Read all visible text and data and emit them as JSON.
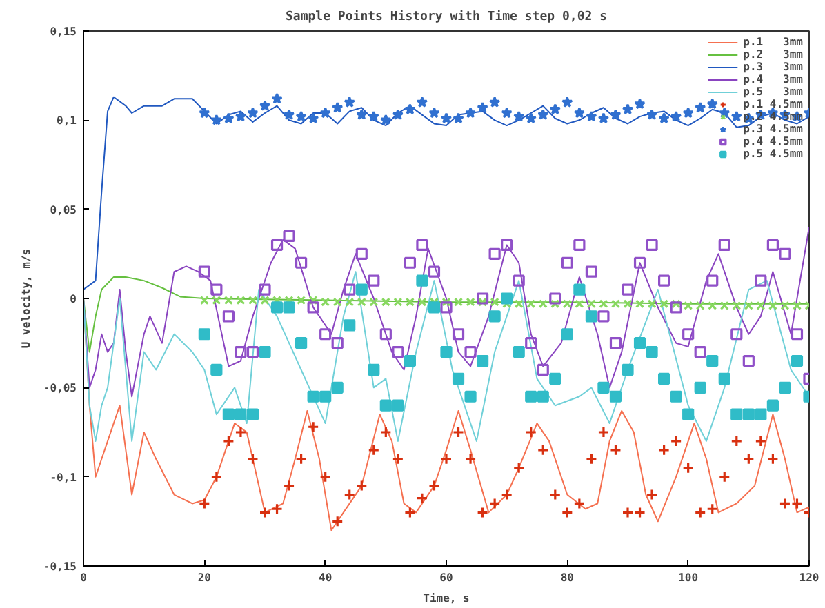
{
  "chart_data": {
    "type": "line",
    "title": "Sample Points History with Time step 0,02 s",
    "xlabel": "Time, s",
    "ylabel": "U velocity, m/s",
    "xlim": [
      0,
      120
    ],
    "xticks": [
      0,
      20,
      40,
      60,
      80,
      100,
      120
    ],
    "ylim": [
      -0.15,
      0.15
    ],
    "yticks": [
      {
        "value": -0.15,
        "label": "-0,15"
      },
      {
        "value": -0.1,
        "label": "-0,1"
      },
      {
        "value": -0.05,
        "label": "-0,05"
      },
      0,
      {
        "value": 0.05,
        "label": "0,05"
      },
      {
        "value": 0.1,
        "label": "0,1"
      },
      {
        "value": 0.15,
        "label": "0,15"
      }
    ],
    "grid": false,
    "legend": "top right",
    "series": [
      {
        "name": "p.1   3mm",
        "color": "#f57050",
        "x": [
          0,
          1,
          2,
          3,
          4,
          6,
          8,
          10,
          12,
          15,
          18,
          20,
          22,
          25,
          27,
          30,
          33,
          35,
          37,
          39,
          41,
          43,
          46,
          49,
          51,
          53,
          55,
          58,
          60,
          62,
          64,
          67,
          70,
          72,
          75,
          77,
          80,
          83,
          85,
          87,
          89,
          91,
          93,
          95,
          98,
          101,
          103,
          105,
          108,
          111,
          114,
          116,
          118,
          120
        ],
        "values": [
          0,
          -0.06,
          -0.1,
          -0.09,
          -0.08,
          -0.06,
          -0.11,
          -0.075,
          -0.09,
          -0.11,
          -0.115,
          -0.113,
          -0.1,
          -0.07,
          -0.075,
          -0.12,
          -0.115,
          -0.09,
          -0.063,
          -0.09,
          -0.13,
          -0.12,
          -0.105,
          -0.065,
          -0.08,
          -0.115,
          -0.12,
          -0.105,
          -0.085,
          -0.063,
          -0.085,
          -0.12,
          -0.11,
          -0.095,
          -0.07,
          -0.08,
          -0.11,
          -0.118,
          -0.115,
          -0.08,
          -0.063,
          -0.075,
          -0.11,
          -0.125,
          -0.1,
          -0.07,
          -0.09,
          -0.12,
          -0.115,
          -0.105,
          -0.065,
          -0.09,
          -0.12,
          -0.117
        ]
      },
      {
        "name": "p.2   3mm",
        "color": "#66c040",
        "x": [
          0,
          1,
          2,
          3,
          5,
          7,
          10,
          13,
          16,
          20,
          40,
          60,
          80,
          100,
          120
        ],
        "values": [
          0,
          -0.03,
          -0.01,
          0.005,
          0.012,
          0.012,
          0.01,
          0.006,
          0.001,
          0,
          -0.001,
          -0.002,
          -0.002,
          -0.003,
          -0.003
        ]
      },
      {
        "name": "p.3   3mm",
        "color": "#2058c0",
        "x": [
          0,
          2,
          3,
          4,
          5,
          7,
          8,
          10,
          13,
          15,
          18,
          20,
          22,
          24,
          26,
          28,
          30,
          32,
          34,
          36,
          38,
          40,
          42,
          44,
          46,
          48,
          50,
          52,
          54,
          56,
          58,
          60,
          62,
          64,
          66,
          68,
          70,
          72,
          74,
          76,
          78,
          80,
          82,
          84,
          86,
          88,
          90,
          92,
          94,
          96,
          98,
          100,
          102,
          104,
          106,
          108,
          110,
          112,
          114,
          116,
          118,
          120
        ],
        "values": [
          0.005,
          0.01,
          0.06,
          0.105,
          0.113,
          0.108,
          0.104,
          0.108,
          0.108,
          0.112,
          0.112,
          0.105,
          0.098,
          0.103,
          0.105,
          0.099,
          0.104,
          0.108,
          0.1,
          0.098,
          0.104,
          0.104,
          0.098,
          0.105,
          0.107,
          0.1,
          0.097,
          0.104,
          0.108,
          0.103,
          0.098,
          0.097,
          0.103,
          0.104,
          0.105,
          0.1,
          0.097,
          0.1,
          0.104,
          0.108,
          0.101,
          0.098,
          0.1,
          0.104,
          0.107,
          0.101,
          0.098,
          0.102,
          0.104,
          0.105,
          0.1,
          0.097,
          0.101,
          0.106,
          0.104,
          0.096,
          0.097,
          0.102,
          0.104,
          0.1,
          0.098,
          0.102
        ]
      },
      {
        "name": "p.4   3mm",
        "color": "#8a44c0",
        "x": [
          0,
          1,
          2,
          3,
          4,
          5,
          6,
          7,
          8,
          10,
          11,
          13,
          15,
          17,
          19,
          21,
          24,
          26,
          28,
          31,
          33,
          35,
          38,
          41,
          43,
          45,
          48,
          51,
          53,
          55,
          57,
          60,
          62,
          64,
          67,
          70,
          72,
          74,
          76,
          79,
          82,
          85,
          87,
          89,
          92,
          95,
          98,
          100,
          103,
          105,
          108,
          110,
          112,
          114,
          117,
          120
        ],
        "values": [
          0,
          -0.05,
          -0.04,
          -0.02,
          -0.03,
          -0.025,
          0.005,
          -0.03,
          -0.055,
          -0.02,
          -0.01,
          -0.025,
          0.015,
          0.018,
          0.015,
          0.01,
          -0.038,
          -0.035,
          -0.01,
          0.02,
          0.033,
          0.028,
          -0.005,
          -0.02,
          0.005,
          0.025,
          0.0,
          -0.03,
          -0.04,
          -0.01,
          0.028,
          0.0,
          -0.03,
          -0.038,
          -0.01,
          0.03,
          0.02,
          -0.02,
          -0.038,
          -0.025,
          0.012,
          -0.02,
          -0.05,
          -0.03,
          0.02,
          -0.005,
          -0.025,
          -0.027,
          0.01,
          0.025,
          -0.005,
          -0.02,
          -0.01,
          0.015,
          -0.02,
          0.04
        ]
      },
      {
        "name": "p.5   3mm",
        "color": "#70d0d8",
        "x": [
          0,
          1,
          2,
          3,
          4,
          6,
          8,
          10,
          12,
          15,
          18,
          20,
          22,
          25,
          27,
          29,
          32,
          36,
          40,
          43,
          45,
          48,
          50,
          52,
          55,
          58,
          61,
          65,
          68,
          72,
          75,
          78,
          82,
          84,
          87,
          90,
          95,
          100,
          103,
          106,
          110,
          113,
          117,
          120
        ],
        "values": [
          0,
          -0.06,
          -0.08,
          -0.06,
          -0.05,
          0.0,
          -0.08,
          -0.03,
          -0.04,
          -0.02,
          -0.03,
          -0.04,
          -0.065,
          -0.05,
          -0.07,
          0.005,
          -0.01,
          -0.04,
          -0.07,
          -0.01,
          0.015,
          -0.05,
          -0.045,
          -0.08,
          -0.03,
          0.01,
          -0.04,
          -0.08,
          -0.03,
          0.01,
          -0.045,
          -0.06,
          -0.055,
          -0.05,
          -0.07,
          -0.04,
          0.005,
          -0.06,
          -0.08,
          -0.05,
          0.005,
          0.01,
          -0.04,
          -0.055
        ]
      },
      {
        "name": "p.1 4.5mm",
        "type": "scatter",
        "marker": "cross",
        "color": "#d83010",
        "x": [
          20,
          22,
          24,
          26,
          28,
          30,
          32,
          34,
          36,
          38,
          40,
          42,
          44,
          46,
          48,
          50,
          52,
          54,
          56,
          58,
          60,
          62,
          64,
          66,
          68,
          70,
          72,
          74,
          76,
          78,
          80,
          82,
          84,
          86,
          88,
          90,
          92,
          94,
          96,
          98,
          100,
          102,
          104,
          106,
          108,
          110,
          112,
          114,
          116,
          118,
          120
        ],
        "values": [
          -0.115,
          -0.1,
          -0.08,
          -0.075,
          -0.09,
          -0.12,
          -0.118,
          -0.105,
          -0.09,
          -0.072,
          -0.1,
          -0.125,
          -0.11,
          -0.105,
          -0.085,
          -0.075,
          -0.09,
          -0.12,
          -0.112,
          -0.105,
          -0.09,
          -0.075,
          -0.09,
          -0.12,
          -0.115,
          -0.11,
          -0.095,
          -0.075,
          -0.085,
          -0.11,
          -0.12,
          -0.115,
          -0.09,
          -0.075,
          -0.085,
          -0.12,
          -0.12,
          -0.11,
          -0.085,
          -0.08,
          -0.095,
          -0.12,
          -0.118,
          -0.1,
          -0.08,
          -0.09,
          -0.08,
          -0.09,
          -0.115,
          -0.115,
          -0.12
        ]
      },
      {
        "name": "p.2 4.5mm",
        "type": "scatter",
        "marker": "x",
        "color": "#88d860",
        "x": [
          20,
          22,
          24,
          26,
          28,
          30,
          32,
          34,
          36,
          38,
          40,
          42,
          44,
          46,
          48,
          50,
          52,
          54,
          56,
          58,
          60,
          62,
          64,
          66,
          68,
          70,
          72,
          74,
          76,
          78,
          80,
          82,
          84,
          86,
          88,
          90,
          92,
          94,
          96,
          98,
          100,
          102,
          104,
          106,
          108,
          110,
          112,
          114,
          116,
          118,
          120
        ],
        "values": [
          -0.001,
          -0.001,
          -0.001,
          -0.001,
          -0.001,
          -0.001,
          -0.001,
          -0.001,
          -0.001,
          -0.001,
          -0.002,
          -0.002,
          -0.002,
          -0.002,
          -0.002,
          -0.002,
          -0.002,
          -0.002,
          -0.002,
          -0.002,
          -0.002,
          -0.002,
          -0.002,
          -0.002,
          -0.002,
          -0.003,
          -0.003,
          -0.003,
          -0.003,
          -0.003,
          -0.003,
          -0.003,
          -0.003,
          -0.003,
          -0.003,
          -0.003,
          -0.003,
          -0.003,
          -0.003,
          -0.003,
          -0.004,
          -0.004,
          -0.004,
          -0.004,
          -0.004,
          -0.004,
          -0.004,
          -0.004,
          -0.004,
          -0.004,
          -0.004
        ]
      },
      {
        "name": "p.3 4.5mm",
        "type": "scatter",
        "marker": "star",
        "color": "#3070d0",
        "x": [
          20,
          22,
          24,
          26,
          28,
          30,
          32,
          34,
          36,
          38,
          40,
          42,
          44,
          46,
          48,
          50,
          52,
          54,
          56,
          58,
          60,
          62,
          64,
          66,
          68,
          70,
          72,
          74,
          76,
          78,
          80,
          82,
          84,
          86,
          88,
          90,
          92,
          94,
          96,
          98,
          100,
          102,
          104,
          106,
          108,
          110,
          112,
          114,
          116,
          118,
          120
        ],
        "values": [
          0.104,
          0.1,
          0.101,
          0.102,
          0.104,
          0.108,
          0.112,
          0.103,
          0.102,
          0.101,
          0.104,
          0.107,
          0.11,
          0.103,
          0.102,
          0.1,
          0.103,
          0.106,
          0.11,
          0.104,
          0.101,
          0.101,
          0.104,
          0.107,
          0.11,
          0.104,
          0.102,
          0.101,
          0.103,
          0.106,
          0.11,
          0.104,
          0.102,
          0.101,
          0.103,
          0.106,
          0.109,
          0.103,
          0.101,
          0.102,
          0.104,
          0.107,
          0.109,
          0.104,
          0.102,
          0.101,
          0.103,
          0.104,
          0.103,
          0.102,
          0.104
        ]
      },
      {
        "name": "p.4 4.5mm",
        "type": "scatter",
        "marker": "square_open",
        "color": "#9050c8",
        "x": [
          20,
          22,
          24,
          26,
          28,
          30,
          32,
          34,
          36,
          38,
          40,
          42,
          44,
          46,
          48,
          50,
          52,
          54,
          56,
          58,
          60,
          62,
          64,
          66,
          68,
          70,
          72,
          74,
          76,
          78,
          80,
          82,
          84,
          86,
          88,
          90,
          92,
          94,
          96,
          98,
          100,
          102,
          104,
          106,
          108,
          110,
          112,
          114,
          116,
          118,
          120
        ],
        "values": [
          0.015,
          0.005,
          -0.01,
          -0.03,
          -0.03,
          0.005,
          0.03,
          0.035,
          0.02,
          -0.005,
          -0.02,
          -0.025,
          0.005,
          0.025,
          0.01,
          -0.02,
          -0.03,
          0.02,
          0.03,
          0.015,
          -0.005,
          -0.02,
          -0.03,
          0.0,
          0.025,
          0.03,
          0.01,
          -0.025,
          -0.04,
          0.0,
          0.02,
          0.03,
          0.015,
          -0.01,
          -0.025,
          0.005,
          0.02,
          0.03,
          0.01,
          -0.005,
          -0.02,
          -0.03,
          0.01,
          0.03,
          -0.02,
          -0.035,
          0.01,
          0.03,
          0.025,
          -0.02,
          -0.045
        ]
      },
      {
        "name": "p.5 4.5mm",
        "type": "scatter",
        "marker": "square",
        "color": "#30bcc8",
        "x": [
          20,
          22,
          24,
          26,
          28,
          30,
          32,
          34,
          36,
          38,
          40,
          42,
          44,
          46,
          48,
          50,
          52,
          54,
          56,
          58,
          60,
          62,
          64,
          66,
          68,
          70,
          72,
          74,
          76,
          78,
          80,
          82,
          84,
          86,
          88,
          90,
          92,
          94,
          96,
          98,
          100,
          102,
          104,
          106,
          108,
          110,
          112,
          114,
          116,
          118,
          120
        ],
        "values": [
          -0.02,
          -0.04,
          -0.065,
          -0.065,
          -0.065,
          -0.03,
          -0.005,
          -0.005,
          -0.025,
          -0.055,
          -0.055,
          -0.05,
          -0.015,
          0.005,
          -0.04,
          -0.06,
          -0.06,
          -0.035,
          0.01,
          -0.005,
          -0.03,
          -0.045,
          -0.055,
          -0.035,
          -0.01,
          0.0,
          -0.03,
          -0.055,
          -0.055,
          -0.045,
          -0.02,
          0.005,
          -0.01,
          -0.05,
          -0.055,
          -0.04,
          -0.025,
          -0.03,
          -0.045,
          -0.055,
          -0.065,
          -0.05,
          -0.035,
          -0.045,
          -0.065,
          -0.065,
          -0.065,
          -0.06,
          -0.05,
          -0.035,
          -0.055
        ]
      }
    ]
  }
}
